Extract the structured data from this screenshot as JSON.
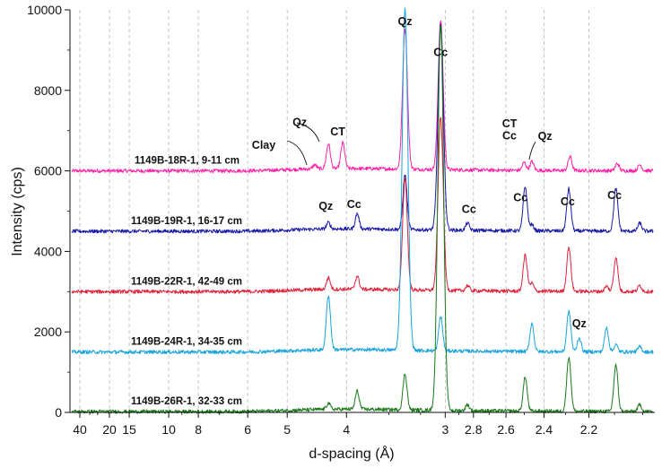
{
  "chart_data": {
    "type": "line",
    "xlabel": "d-spacing (Å)",
    "ylabel": "Intensity (cps)",
    "x_axis": {
      "scale": "reciprocal",
      "direction": "decreasing d to the right",
      "ticks": [
        "40",
        "20",
        "15",
        "10",
        "8",
        "6",
        "5",
        "4",
        "3",
        "2.8",
        "2.6",
        "2.4",
        "2.2"
      ],
      "xlim": [
        60,
        1.96
      ]
    },
    "y_axis": {
      "ticks": [
        "0",
        "2000",
        "4000",
        "6000",
        "8000",
        "10000"
      ],
      "ylim": [
        0,
        10000
      ]
    },
    "grid": {
      "vertical_dashed": true,
      "horizontal": false
    },
    "series": [
      {
        "name": "1149B-18R-1, 9-11 cm",
        "color": "#ff22a8",
        "baseline": 6000,
        "peaks": [
          [
            4.48,
            100
          ],
          [
            4.26,
            620
          ],
          [
            4.05,
            640
          ],
          [
            3.34,
            3500
          ],
          [
            3.035,
            3700
          ],
          [
            2.5,
            200
          ],
          [
            2.46,
            220
          ],
          [
            2.28,
            350
          ],
          [
            2.09,
            180
          ],
          [
            2.01,
            150
          ]
        ]
      },
      {
        "name": "1149B-19R-1, 16-17 cm",
        "color": "#1a1aa8",
        "baseline": 4500,
        "peaks": [
          [
            4.26,
            160
          ],
          [
            3.86,
            380
          ],
          [
            3.34,
            1350
          ],
          [
            3.035,
            5100
          ],
          [
            2.84,
            180
          ],
          [
            2.495,
            1100
          ],
          [
            2.46,
            150
          ],
          [
            2.285,
            1050
          ],
          [
            2.095,
            1050
          ],
          [
            2.01,
            200
          ]
        ]
      },
      {
        "name": "1149B-22R-1, 42-49 cm",
        "color": "#e0223a",
        "baseline": 3000,
        "peaks": [
          [
            4.26,
            290
          ],
          [
            3.86,
            330
          ],
          [
            3.34,
            2800
          ],
          [
            3.035,
            4300
          ],
          [
            2.84,
            130
          ],
          [
            2.495,
            900
          ],
          [
            2.46,
            200
          ],
          [
            2.285,
            1100
          ],
          [
            2.13,
            130
          ],
          [
            2.095,
            850
          ],
          [
            2.01,
            150
          ]
        ]
      },
      {
        "name": "1149B-24R-1, 34-35 cm",
        "color": "#18a4dc",
        "baseline": 1500,
        "peaks": [
          [
            4.26,
            1350
          ],
          [
            3.34,
            8500
          ],
          [
            3.035,
            850
          ],
          [
            2.46,
            700
          ],
          [
            2.285,
            1000
          ],
          [
            2.24,
            350
          ],
          [
            2.13,
            600
          ],
          [
            2.095,
            180
          ],
          [
            2.01,
            130
          ]
        ]
      },
      {
        "name": "1149B-26R-1, 32-33 cm",
        "color": "#1a7a1a",
        "baseline": 20,
        "peaks": [
          [
            4.26,
            150
          ],
          [
            3.86,
            450
          ],
          [
            3.34,
            900
          ],
          [
            3.035,
            9600
          ],
          [
            2.84,
            150
          ],
          [
            2.495,
            850
          ],
          [
            2.285,
            1350
          ],
          [
            2.095,
            1150
          ],
          [
            2.01,
            170
          ]
        ]
      }
    ],
    "annotations": [
      {
        "text": "Qz",
        "d": 3.34,
        "y": 9620
      },
      {
        "text": "Cc",
        "d": 3.035,
        "y": 8850
      },
      {
        "text": "Qz",
        "d": 4.75,
        "y": 7120
      },
      {
        "text": "CT",
        "d": 4.12,
        "y": 6880
      },
      {
        "text": "Clay",
        "d": 5.55,
        "y": 6550
      },
      {
        "text": "CT",
        "d": 2.58,
        "y": 7080
      },
      {
        "text": "Cc",
        "d": 2.58,
        "y": 6780
      },
      {
        "text": "Qz",
        "d": 2.395,
        "y": 6770
      },
      {
        "text": "Qz",
        "d": 4.3,
        "y": 5030
      },
      {
        "text": "Cc",
        "d": 3.9,
        "y": 5080
      },
      {
        "text": "Cc",
        "d": 2.83,
        "y": 4950
      },
      {
        "text": "Cc",
        "d": 2.52,
        "y": 5250
      },
      {
        "text": "Cc",
        "d": 2.29,
        "y": 5150
      },
      {
        "text": "Cc",
        "d": 2.1,
        "y": 5300
      },
      {
        "text": "Qz",
        "d": 2.24,
        "y": 2120
      }
    ]
  }
}
